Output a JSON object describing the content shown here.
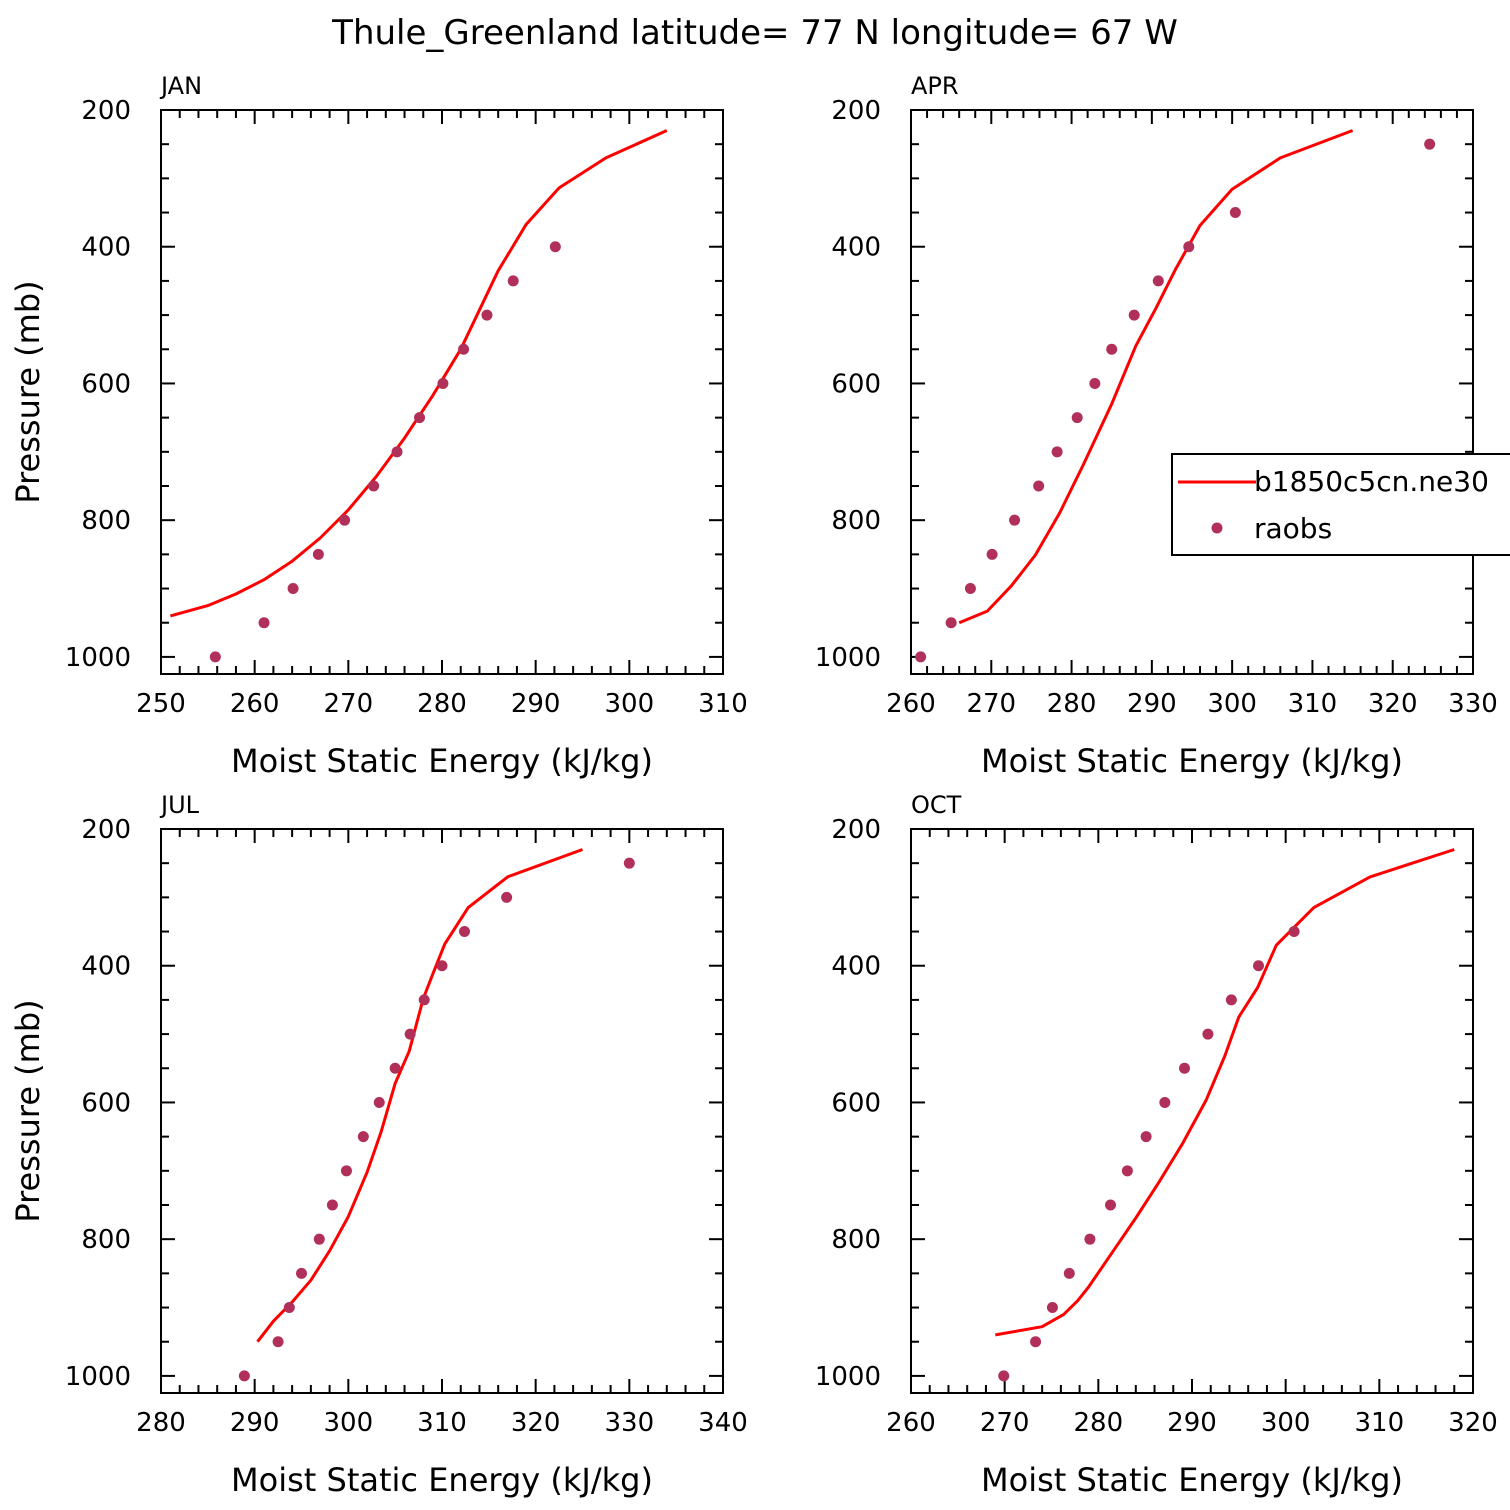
{
  "figure": {
    "title": "Thule_Greenland  latitude= 77 N longitude= 67 W",
    "colors": {
      "model": "#ff0000",
      "obs": "#b0305a"
    }
  },
  "legend": {
    "panel": "APR",
    "entries": [
      {
        "label": "b1850c5cn.ne30",
        "kind": "line"
      },
      {
        "label": "raobs",
        "kind": "marker"
      }
    ]
  },
  "chart_data": [
    {
      "type": "scatter",
      "panel": "JAN",
      "xlabel": "Moist Static Energy (kJ/kg)",
      "ylabel": "Pressure (mb)",
      "xlim": [
        250,
        310
      ],
      "ylim": [
        1025,
        200
      ],
      "y_inverted": true,
      "xticks": [
        250,
        260,
        270,
        280,
        290,
        300,
        310
      ],
      "yticks": [
        200,
        400,
        600,
        800,
        1000
      ],
      "series": [
        {
          "name": "b1850c5cn.ne30",
          "style": "line",
          "x": [
            251.0,
            255.0,
            258.0,
            261.0,
            264.0,
            267.0,
            270.0,
            273.0,
            276.0,
            279.0,
            282.0,
            286.0,
            289.0,
            292.5,
            297.5,
            304.0
          ],
          "y": [
            940,
            925,
            908,
            887,
            860,
            826,
            785,
            736,
            680,
            618,
            550,
            435,
            367,
            314,
            270,
            230
          ]
        },
        {
          "name": "raobs",
          "style": "marker",
          "x": [
            255.8,
            261.0,
            264.1,
            266.8,
            269.6,
            272.7,
            275.2,
            277.6,
            280.1,
            282.3,
            284.8,
            287.6,
            292.1
          ],
          "y": [
            1000,
            950,
            900,
            850,
            800,
            750,
            700,
            650,
            600,
            550,
            500,
            450,
            400
          ]
        }
      ]
    },
    {
      "type": "scatter",
      "panel": "APR",
      "xlabel": "Moist Static Energy (kJ/kg)",
      "ylabel": "",
      "xlim": [
        260,
        330
      ],
      "ylim": [
        1025,
        200
      ],
      "y_inverted": true,
      "xticks": [
        260,
        270,
        280,
        290,
        300,
        310,
        320,
        330
      ],
      "yticks": [
        200,
        400,
        600,
        800,
        1000
      ],
      "series": [
        {
          "name": "b1850c5cn.ne30",
          "style": "line",
          "x": [
            266.0,
            269.5,
            272.5,
            275.5,
            278.5,
            281.5,
            285.0,
            288.0,
            290.5,
            293.0,
            296.0,
            300.0,
            306.0,
            315.0
          ],
          "y": [
            950,
            933,
            896,
            851,
            790,
            718,
            630,
            545,
            490,
            432,
            369,
            316,
            270,
            230
          ]
        },
        {
          "name": "raobs",
          "style": "marker",
          "x": [
            261.2,
            265.0,
            267.4,
            270.1,
            272.9,
            275.9,
            278.2,
            280.7,
            282.9,
            285.0,
            287.8,
            290.8,
            294.6,
            300.4,
            324.6
          ],
          "y": [
            1000,
            950,
            900,
            850,
            800,
            750,
            700,
            650,
            600,
            550,
            500,
            450,
            400,
            350,
            250
          ]
        }
      ]
    },
    {
      "type": "scatter",
      "panel": "JUL",
      "xlabel": "Moist Static Energy (kJ/kg)",
      "ylabel": "Pressure (mb)",
      "xlim": [
        280,
        340
      ],
      "ylim": [
        1025,
        200
      ],
      "y_inverted": true,
      "xticks": [
        280,
        290,
        300,
        310,
        320,
        330,
        340
      ],
      "yticks": [
        200,
        400,
        600,
        800,
        1000
      ],
      "series": [
        {
          "name": "b1850c5cn.ne30",
          "style": "line",
          "x": [
            290.3,
            292.0,
            294.0,
            296.0,
            298.0,
            300.0,
            302.0,
            303.5,
            305.0,
            306.5,
            308.0,
            309.0,
            310.3,
            312.8,
            317.0,
            325.0
          ],
          "y": [
            950,
            920,
            892,
            860,
            817,
            767,
            702,
            643,
            572,
            525,
            448,
            413,
            368,
            315,
            270,
            230
          ]
        },
        {
          "name": "raobs",
          "style": "marker",
          "x": [
            288.9,
            292.5,
            293.7,
            295.0,
            296.9,
            298.3,
            299.8,
            301.6,
            303.3,
            305.0,
            306.6,
            308.1,
            310.0,
            312.4,
            316.9,
            330.0
          ],
          "y": [
            1000,
            950,
            900,
            850,
            800,
            750,
            700,
            650,
            600,
            550,
            500,
            450,
            400,
            350,
            300,
            250
          ]
        }
      ]
    },
    {
      "type": "scatter",
      "panel": "OCT",
      "xlabel": "Moist Static Energy (kJ/kg)",
      "ylabel": "",
      "xlim": [
        260,
        320
      ],
      "ylim": [
        1025,
        200
      ],
      "y_inverted": true,
      "xticks": [
        260,
        270,
        280,
        290,
        300,
        310,
        320
      ],
      "yticks": [
        200,
        400,
        600,
        800,
        1000
      ],
      "series": [
        {
          "name": "b1850c5cn.ne30",
          "style": "line",
          "x": [
            269.0,
            274.0,
            276.3,
            277.8,
            279.0,
            281.5,
            284.0,
            286.5,
            289.0,
            291.5,
            293.5,
            295.0,
            297.0,
            299.0,
            303.0,
            309.0,
            318.0
          ],
          "y": [
            940,
            928,
            910,
            890,
            869,
            819,
            769,
            716,
            660,
            597,
            532,
            475,
            432,
            370,
            315,
            270,
            230
          ]
        },
        {
          "name": "raobs",
          "style": "marker",
          "x": [
            269.9,
            273.3,
            275.1,
            276.9,
            279.1,
            281.3,
            283.1,
            285.1,
            287.1,
            289.2,
            291.7,
            294.2,
            297.1,
            300.9
          ],
          "y": [
            1000,
            950,
            900,
            850,
            800,
            750,
            700,
            650,
            600,
            550,
            500,
            450,
            400,
            350
          ]
        }
      ]
    }
  ]
}
